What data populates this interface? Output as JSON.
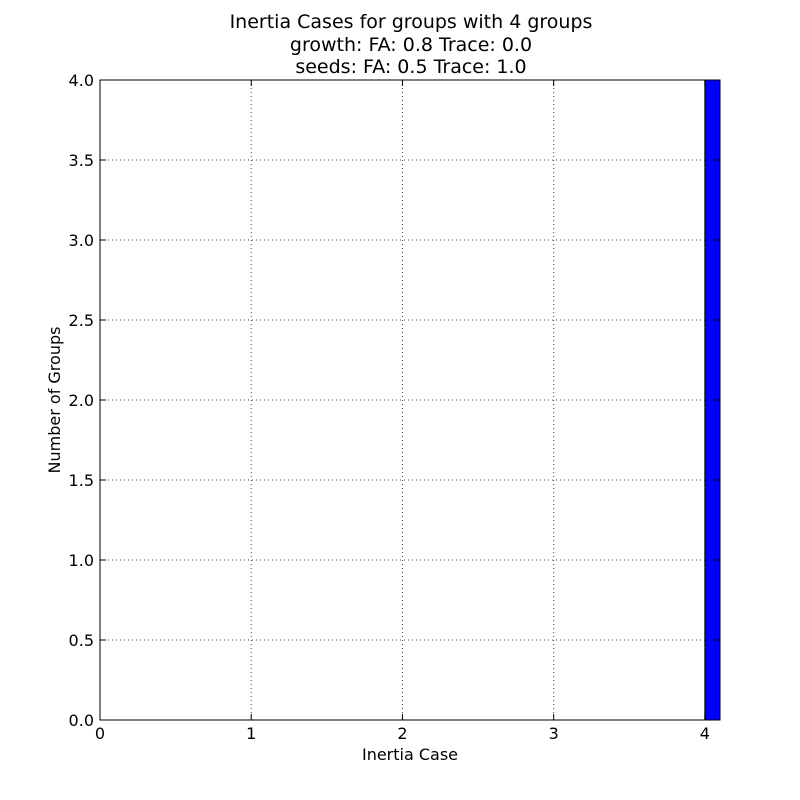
{
  "chart_data": {
    "type": "bar",
    "title": [
      "Inertia Cases for groups with 4 groups",
      "growth: FA: 0.8 Trace: 0.0",
      "seeds: FA: 0.5 Trace: 1.0"
    ],
    "xlabel": "Inertia Case",
    "ylabel": "Number of Groups",
    "xlim": [
      0,
      4.1
    ],
    "ylim": [
      0,
      4.0
    ],
    "xticks": [
      0,
      1,
      2,
      3,
      4
    ],
    "xtick_labels": [
      "0",
      "1",
      "2",
      "3",
      "4"
    ],
    "yticks": [
      0,
      0.5,
      1,
      1.5,
      2,
      2.5,
      3,
      3.5,
      4
    ],
    "ytick_labels": [
      "0.0",
      "0.5",
      "1.0",
      "1.5",
      "2.0",
      "2.5",
      "3.0",
      "3.5",
      "4.0"
    ],
    "grid": true,
    "bars": [
      {
        "x_start": 0.0,
        "x_end": 0.1,
        "value": 0
      },
      {
        "x_start": 0.5,
        "x_end": 0.6,
        "value": 0
      },
      {
        "x_start": 1.0,
        "x_end": 1.1,
        "value": 0
      },
      {
        "x_start": 1.5,
        "x_end": 1.6,
        "value": 0
      },
      {
        "x_start": 2.0,
        "x_end": 2.1,
        "value": 0
      },
      {
        "x_start": 2.5,
        "x_end": 2.6,
        "value": 0
      },
      {
        "x_start": 3.0,
        "x_end": 3.1,
        "value": 0
      },
      {
        "x_start": 3.5,
        "x_end": 3.6,
        "value": 0
      },
      {
        "x_start": 4.0,
        "x_end": 4.1,
        "value": 4
      }
    ],
    "bar_color": "#0000ff"
  }
}
